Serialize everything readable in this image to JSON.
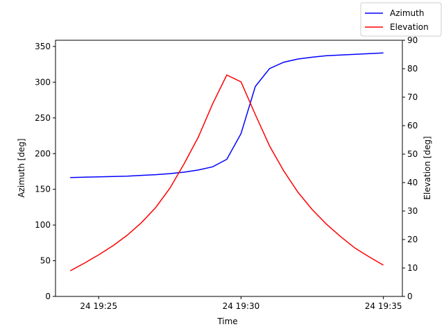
{
  "chart_data": {
    "type": "line",
    "xlabel": "Time",
    "ylabel": "Azimuth [deg]",
    "y2label": "Elevation [deg]",
    "x": [
      "19:24:00",
      "19:24:30",
      "19:25:00",
      "19:25:30",
      "19:26:00",
      "19:26:30",
      "19:27:00",
      "19:27:30",
      "19:28:00",
      "19:28:30",
      "19:29:00",
      "19:29:30",
      "19:30:00",
      "19:30:30",
      "19:31:00",
      "19:31:30",
      "19:32:00",
      "19:32:30",
      "19:33:00",
      "19:33:30",
      "19:34:00",
      "19:34:30",
      "19:35:00"
    ],
    "xlim": [
      "19:23:29",
      "19:35:40"
    ],
    "xticks": [
      {
        "value": "19:25:00",
        "label": "24 19:25"
      },
      {
        "value": "19:30:00",
        "label": "24 19:30"
      },
      {
        "value": "19:35:00",
        "label": "24 19:35"
      }
    ],
    "ylim": [
      0,
      358.7
    ],
    "yticks": [
      0,
      50,
      100,
      150,
      200,
      250,
      300,
      350
    ],
    "y2lim": [
      0,
      90
    ],
    "y2ticks": [
      0,
      10,
      20,
      30,
      40,
      50,
      60,
      70,
      80,
      90
    ],
    "legend": "upper right",
    "series": [
      {
        "name": "Azimuth",
        "color": "#0000ff",
        "values": [
          166.5,
          167,
          167.5,
          168,
          168.5,
          169.5,
          170.5,
          172,
          174,
          177,
          181.5,
          192,
          228,
          294,
          319,
          328,
          332.5,
          335,
          337,
          338,
          339,
          340,
          341
        ]
      },
      {
        "name": "Elevation",
        "color": "#ff0000",
        "axis": "y2",
        "values": [
          9.0,
          11.7,
          14.6,
          17.8,
          21.5,
          25.9,
          31.2,
          38,
          46.6,
          56,
          67.6,
          77.8,
          75.4,
          63.9,
          52.9,
          44.1,
          36.6,
          30.5,
          25.4,
          21,
          17,
          13.9,
          11
        ]
      }
    ]
  }
}
